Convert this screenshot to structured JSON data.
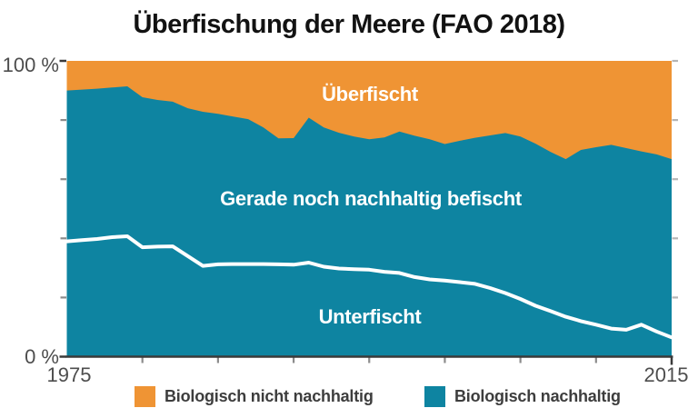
{
  "title": "Überfischung der Meere (FAO 2018)",
  "colors": {
    "orange": "#EF9434",
    "teal": "#0E84A1",
    "white_line": "#FFFFFF",
    "axis_dark": "#3A3A3A",
    "tick_gray": "#8C8C8C",
    "tick_light": "#B5B5B5"
  },
  "axis": {
    "y_top_label": "100 %",
    "y_bottom_label": "0 %",
    "x_left_label": "1975",
    "x_right_label": "2015"
  },
  "area_labels": {
    "overfished": "Überfischt",
    "max_sustainable": "Gerade noch nachhaltig befischt",
    "underfished": "Unterfischt"
  },
  "legend": {
    "items": [
      {
        "label": "Biologisch nicht nachhaltig",
        "color_key": "orange"
      },
      {
        "label": "Biologisch nachhaltig",
        "color_key": "teal"
      }
    ]
  },
  "chart_data": {
    "type": "area",
    "stacked": true,
    "title": "Überfischung der Meere (FAO 2018)",
    "y_unit": "%",
    "xlim": [
      1975,
      2015
    ],
    "ylim": [
      0,
      100
    ],
    "x_ticks": [
      1980,
      1985,
      1990,
      1995,
      2000,
      2005,
      2010
    ],
    "y_ticks": [
      20,
      40,
      60,
      80
    ],
    "grid": false,
    "legend_position": "bottom",
    "x": [
      1975,
      1976,
      1977,
      1978,
      1979,
      1980,
      1981,
      1982,
      1983,
      1984,
      1985,
      1986,
      1987,
      1988,
      1989,
      1990,
      1991,
      1992,
      1993,
      1994,
      1995,
      1996,
      1997,
      1998,
      1999,
      2000,
      2001,
      2002,
      2003,
      2004,
      2005,
      2006,
      2007,
      2008,
      2009,
      2010,
      2011,
      2012,
      2013,
      2014,
      2015
    ],
    "series": [
      {
        "name": "Unterfischt",
        "color_key": "teal",
        "values": [
          39.0,
          39.4,
          39.8,
          40.4,
          40.7,
          37.0,
          37.2,
          37.3,
          34.0,
          30.7,
          31.2,
          31.3,
          31.3,
          31.3,
          31.2,
          31.1,
          31.8,
          30.4,
          29.8,
          29.6,
          29.4,
          28.7,
          28.3,
          26.9,
          26.1,
          25.7,
          25.2,
          24.6,
          23.2,
          21.5,
          19.5,
          17.2,
          15.4,
          13.5,
          12.0,
          10.8,
          9.5,
          9.1,
          10.8,
          8.5,
          6.5
        ]
      },
      {
        "name": "Gerade noch nachhaltig befischt",
        "color_key": "teal",
        "values": [
          51.0,
          50.9,
          50.8,
          50.6,
          50.7,
          50.7,
          49.6,
          48.9,
          50.0,
          52.1,
          50.9,
          49.9,
          49.0,
          46.2,
          42.6,
          42.8,
          49.0,
          47.1,
          45.9,
          44.8,
          44.1,
          45.4,
          47.8,
          47.8,
          47.4,
          46.2,
          47.8,
          49.4,
          51.6,
          54.1,
          54.9,
          54.8,
          53.8,
          53.3,
          57.9,
          60.0,
          62.1,
          61.4,
          58.6,
          59.9,
          60.3
        ]
      },
      {
        "name": "Überfischt",
        "color_key": "orange",
        "values": [
          10.0,
          9.7,
          9.4,
          9.0,
          8.6,
          12.3,
          13.2,
          13.8,
          16.0,
          17.2,
          17.9,
          18.8,
          19.7,
          22.5,
          26.2,
          26.1,
          19.2,
          22.5,
          24.3,
          25.6,
          26.5,
          25.9,
          23.9,
          25.3,
          26.5,
          28.1,
          27.0,
          26.0,
          25.2,
          24.4,
          25.6,
          28.0,
          30.8,
          33.2,
          30.1,
          29.2,
          28.4,
          29.5,
          30.6,
          31.6,
          33.2
        ]
      }
    ]
  }
}
